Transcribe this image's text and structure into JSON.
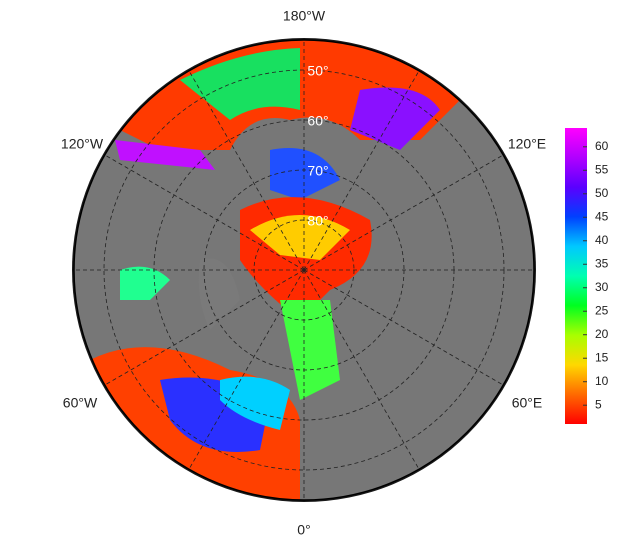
{
  "map": {
    "projection": "north polar stereographic",
    "longitude_labels": {
      "top": "180°W",
      "upper_left": "120°W",
      "upper_right": "120°E",
      "lower_left": "60°W",
      "lower_right": "60°E",
      "bottom": "0°"
    },
    "latitude_labels": [
      "50°",
      "60°",
      "70°",
      "80°"
    ],
    "colorbar": {
      "lim": [
        1,
        64
      ],
      "ticks": [
        5,
        10,
        15,
        20,
        25,
        30,
        35,
        40,
        45,
        50,
        55,
        60
      ],
      "colors": [
        "#ff0000",
        "#ff6a00",
        "#ffd800",
        "#a8ff00",
        "#00ff20",
        "#00ffb0",
        "#00c8ff",
        "#0040ff",
        "#5a00ff",
        "#b000ff",
        "#ff00ff"
      ]
    }
  }
}
